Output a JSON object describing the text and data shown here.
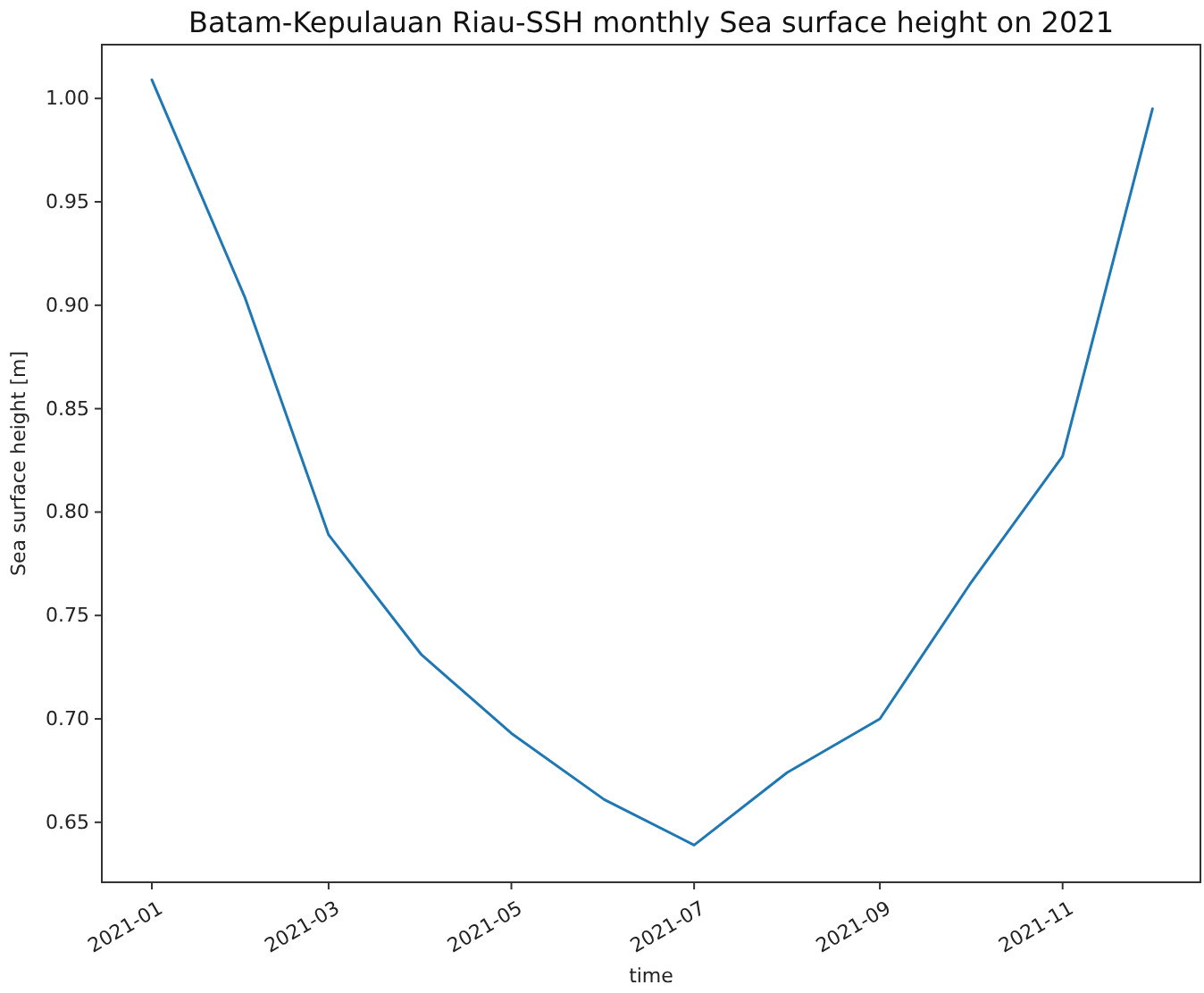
{
  "chart_data": {
    "type": "line",
    "title": "Batam-Kepulauan Riau-SSH monthly Sea surface height on 2021",
    "xlabel": "time",
    "ylabel": "Sea surface height [m]",
    "x": [
      "2021-01-01",
      "2021-02-01",
      "2021-03-01",
      "2021-04-01",
      "2021-05-01",
      "2021-06-01",
      "2021-07-01",
      "2021-08-01",
      "2021-09-01",
      "2021-10-01",
      "2021-11-01",
      "2021-12-01"
    ],
    "series": [
      {
        "color": "#1f77b4",
        "values": [
          1.009,
          0.904,
          0.789,
          0.731,
          0.693,
          0.661,
          0.639,
          0.674,
          0.7,
          0.765,
          0.827,
          0.995
        ]
      }
    ],
    "xlim": [
      "2020-12-15T07:12",
      "2021-12-17"
    ],
    "xticks": [
      {
        "value": "2021-01-01",
        "label": "2021-01"
      },
      {
        "value": "2021-03-01",
        "label": "2021-03"
      },
      {
        "value": "2021-05-01",
        "label": "2021-05"
      },
      {
        "value": "2021-07-01",
        "label": "2021-07"
      },
      {
        "value": "2021-09-01",
        "label": "2021-09"
      },
      {
        "value": "2021-11-01",
        "label": "2021-11"
      }
    ],
    "ylim": [
      0.621,
      1.026
    ],
    "yticks": [
      {
        "value": 0.65,
        "label": "0.65"
      },
      {
        "value": 0.7,
        "label": "0.70"
      },
      {
        "value": 0.75,
        "label": "0.75"
      },
      {
        "value": 0.8,
        "label": "0.80"
      },
      {
        "value": 0.85,
        "label": "0.85"
      },
      {
        "value": 0.9,
        "label": "0.90"
      },
      {
        "value": 0.95,
        "label": "0.95"
      },
      {
        "value": 1.0,
        "label": "1.00"
      }
    ],
    "grid": false,
    "marker": "none",
    "line_style": "solid"
  }
}
